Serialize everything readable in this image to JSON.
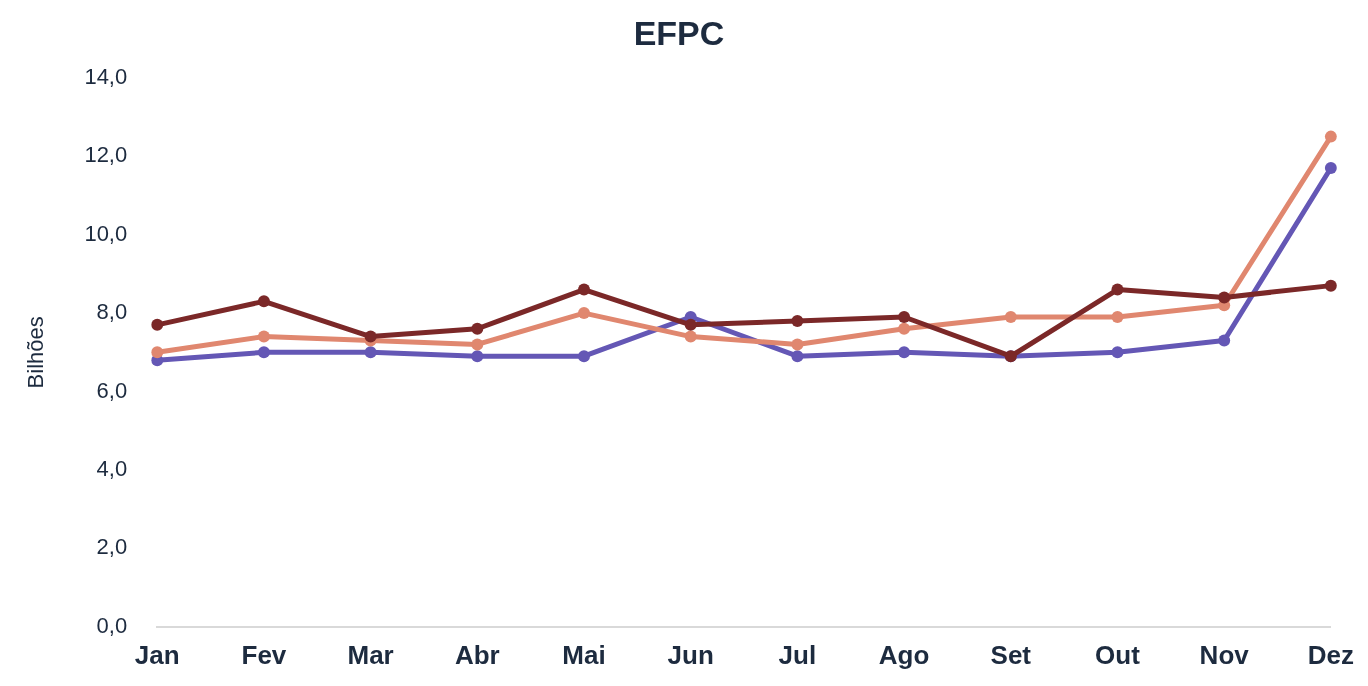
{
  "chart_data": {
    "type": "line",
    "title": "EFPC",
    "ylabel": "Bilhões",
    "categories": [
      "Jan",
      "Fev",
      "Mar",
      "Abr",
      "Mai",
      "Jun",
      "Jul",
      "Ago",
      "Set",
      "Out",
      "Nov",
      "Dez"
    ],
    "series": [
      {
        "color": "#6457b5",
        "values": [
          6.8,
          7.0,
          7.0,
          6.9,
          6.9,
          7.9,
          6.9,
          7.0,
          6.9,
          7.0,
          7.3,
          11.7
        ]
      },
      {
        "color": "#e0876f",
        "values": [
          7.0,
          7.4,
          7.3,
          7.2,
          8.0,
          7.4,
          7.2,
          7.6,
          7.9,
          7.9,
          8.2,
          12.5
        ]
      },
      {
        "color": "#7b2828",
        "values": [
          7.7,
          8.3,
          7.4,
          7.6,
          8.6,
          7.7,
          7.8,
          7.9,
          6.9,
          8.6,
          8.4,
          8.7
        ]
      }
    ],
    "ylim": [
      0,
      14
    ],
    "yticks": [
      {
        "value": 0,
        "label": "0,0"
      },
      {
        "value": 2,
        "label": "2,0"
      },
      {
        "value": 4,
        "label": "4,0"
      },
      {
        "value": 6,
        "label": "6,0"
      },
      {
        "value": 8,
        "label": "8,0"
      },
      {
        "value": 10,
        "label": "10,0"
      },
      {
        "value": 12,
        "label": "12,0"
      },
      {
        "value": 14,
        "label": "14,0"
      }
    ],
    "grid": false,
    "legend": false,
    "marker": "circle",
    "line_style": "solid"
  }
}
